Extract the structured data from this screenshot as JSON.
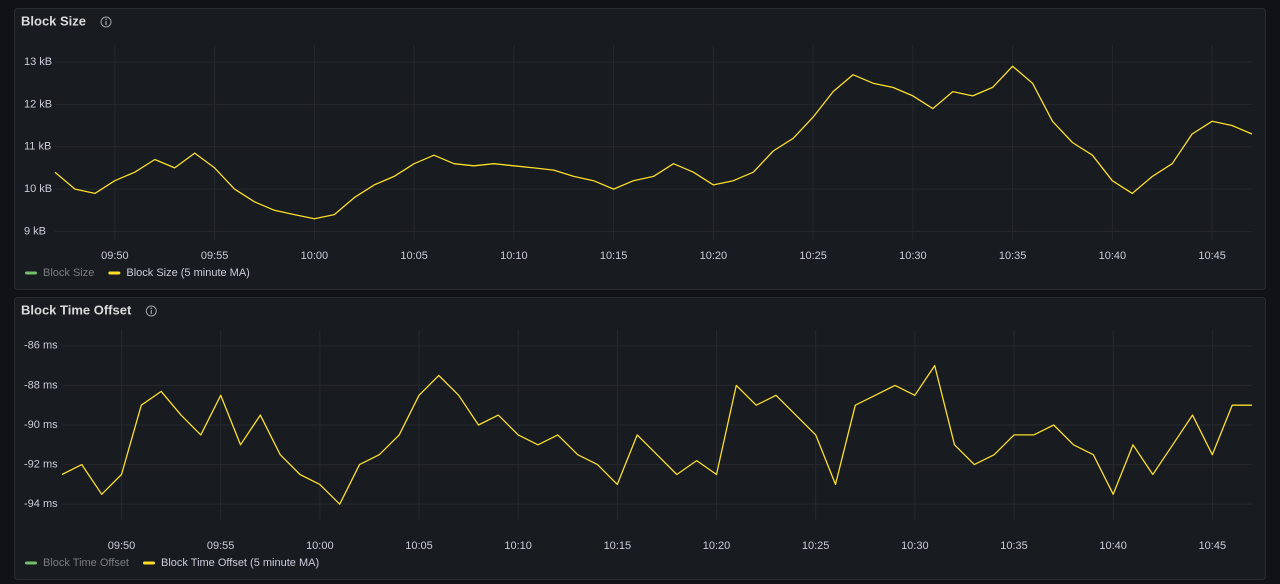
{
  "chart_data": [
    {
      "type": "line",
      "title": "Block Size",
      "x": [
        "09:47",
        "09:48",
        "09:49",
        "09:50",
        "09:51",
        "09:52",
        "09:53",
        "09:54",
        "09:55",
        "09:56",
        "09:57",
        "09:58",
        "09:59",
        "10:00",
        "10:01",
        "10:02",
        "10:03",
        "10:04",
        "10:05",
        "10:06",
        "10:07",
        "10:08",
        "10:09",
        "10:10",
        "10:11",
        "10:12",
        "10:13",
        "10:14",
        "10:15",
        "10:16",
        "10:17",
        "10:18",
        "10:19",
        "10:20",
        "10:21",
        "10:22",
        "10:23",
        "10:24",
        "10:25",
        "10:26",
        "10:27",
        "10:28",
        "10:29",
        "10:30",
        "10:31",
        "10:32",
        "10:33",
        "10:34",
        "10:35",
        "10:36",
        "10:37",
        "10:38",
        "10:39",
        "10:40",
        "10:41",
        "10:42",
        "10:43",
        "10:44",
        "10:45",
        "10:46",
        "10:47"
      ],
      "xlim": [
        "09:47",
        "10:47"
      ],
      "xticks": [
        "09:50",
        "09:55",
        "10:00",
        "10:05",
        "10:10",
        "10:15",
        "10:20",
        "10:25",
        "10:30",
        "10:35",
        "10:40",
        "10:45"
      ],
      "ylim": [
        8.8,
        13.4
      ],
      "yticks": [
        {
          "value": 9,
          "label": "9 kB"
        },
        {
          "value": 10,
          "label": "10 kB"
        },
        {
          "value": 11,
          "label": "11 kB"
        },
        {
          "value": 12,
          "label": "12 kB"
        },
        {
          "value": 13,
          "label": "13 kB"
        }
      ],
      "grid": true,
      "series": [
        {
          "name": "Block Size",
          "color": "#73bf69",
          "hidden": true
        },
        {
          "name": "Block Size (5 minute MA)",
          "color": "#fade2a",
          "values": [
            10.4,
            10.0,
            9.9,
            10.2,
            10.4,
            10.7,
            10.5,
            10.85,
            10.5,
            10.0,
            9.7,
            9.5,
            9.4,
            9.3,
            9.4,
            9.8,
            10.1,
            10.3,
            10.6,
            10.8,
            10.6,
            10.55,
            10.6,
            10.55,
            10.5,
            10.45,
            10.3,
            10.2,
            10.0,
            10.2,
            10.3,
            10.6,
            10.4,
            10.1,
            10.2,
            10.4,
            10.9,
            11.2,
            11.7,
            12.3,
            12.7,
            12.5,
            12.4,
            12.2,
            11.9,
            12.3,
            12.2,
            12.4,
            12.9,
            12.5,
            11.6,
            11.1,
            10.8,
            10.2,
            9.9,
            10.3,
            10.6,
            11.3,
            11.6,
            11.5,
            11.3
          ]
        }
      ]
    },
    {
      "type": "line",
      "title": "Block Time Offset",
      "x": [
        "09:47",
        "09:48",
        "09:49",
        "09:50",
        "09:51",
        "09:52",
        "09:53",
        "09:54",
        "09:55",
        "09:56",
        "09:57",
        "09:58",
        "09:59",
        "10:00",
        "10:01",
        "10:02",
        "10:03",
        "10:04",
        "10:05",
        "10:06",
        "10:07",
        "10:08",
        "10:09",
        "10:10",
        "10:11",
        "10:12",
        "10:13",
        "10:14",
        "10:15",
        "10:16",
        "10:17",
        "10:18",
        "10:19",
        "10:20",
        "10:21",
        "10:22",
        "10:23",
        "10:24",
        "10:25",
        "10:26",
        "10:27",
        "10:28",
        "10:29",
        "10:30",
        "10:31",
        "10:32",
        "10:33",
        "10:34",
        "10:35",
        "10:36",
        "10:37",
        "10:38",
        "10:39",
        "10:40",
        "10:41",
        "10:42",
        "10:43",
        "10:44",
        "10:45",
        "10:46",
        "10:47"
      ],
      "xlim": [
        "09:47",
        "10:47"
      ],
      "xticks": [
        "09:50",
        "09:55",
        "10:00",
        "10:05",
        "10:10",
        "10:15",
        "10:20",
        "10:25",
        "10:30",
        "10:35",
        "10:40",
        "10:45"
      ],
      "ylim": [
        -94.8,
        -85.2
      ],
      "yticks": [
        {
          "value": -94,
          "label": "-94 ms"
        },
        {
          "value": -92,
          "label": "-92 ms"
        },
        {
          "value": -90,
          "label": "-90 ms"
        },
        {
          "value": -88,
          "label": "-88 ms"
        },
        {
          "value": -86,
          "label": "-86 ms"
        }
      ],
      "grid": true,
      "series": [
        {
          "name": "Block Time Offset",
          "color": "#73bf69",
          "hidden": true
        },
        {
          "name": "Block Time Offset (5 minute MA)",
          "color": "#fade2a",
          "values": [
            -92.5,
            -92.0,
            -93.5,
            -92.5,
            -89.0,
            -88.3,
            -89.5,
            -90.5,
            -88.5,
            -91.0,
            -89.5,
            -91.5,
            -92.5,
            -93.0,
            -94.0,
            -92.0,
            -91.5,
            -90.5,
            -88.5,
            -87.5,
            -88.5,
            -90.0,
            -89.5,
            -90.5,
            -91.0,
            -90.5,
            -91.5,
            -92.0,
            -93.0,
            -90.5,
            -91.5,
            -92.5,
            -91.8,
            -92.5,
            -88.0,
            -89.0,
            -88.5,
            -89.5,
            -90.5,
            -93.0,
            -89.0,
            -88.5,
            -88.0,
            -88.5,
            -87.0,
            -91.0,
            -92.0,
            -91.5,
            -90.5,
            -90.5,
            -90.0,
            -91.0,
            -91.5,
            -93.5,
            -91.0,
            -92.5,
            -91.0,
            -89.5,
            -91.5,
            -89.0,
            -89.0
          ]
        }
      ]
    }
  ]
}
